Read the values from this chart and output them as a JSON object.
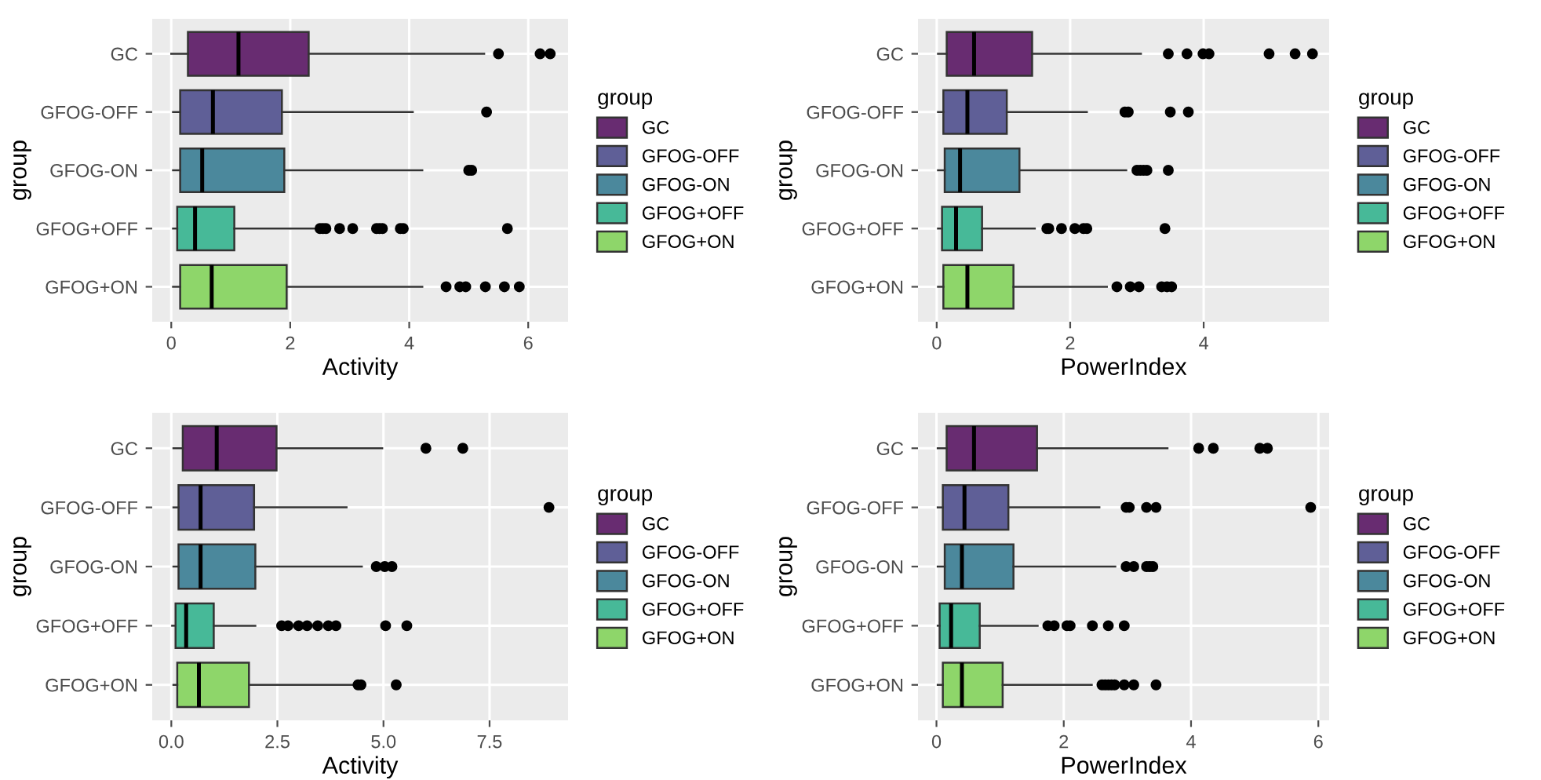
{
  "chart_data": [
    {
      "type": "box",
      "orientation": "horizontal",
      "xlabel": "Activity",
      "ylabel": "group",
      "legend_title": "group",
      "legend": "right",
      "grid": true,
      "categories": [
        "GC",
        "GFOG-OFF",
        "GFOG-ON",
        "GFOG+OFF",
        "GFOG+ON"
      ],
      "xlim": [
        -0.32,
        6.67
      ],
      "xticks": [
        0,
        2,
        4,
        6
      ],
      "series": [
        {
          "name": "GC",
          "color": "#682c71",
          "boxes": [
            {
              "low": 0.0,
              "q1": 0.28,
              "median": 1.13,
              "q3": 2.31,
              "high": 5.26,
              "outliers": [
                5.5,
                6.2,
                6.37
              ]
            },
            null,
            null,
            null,
            null
          ]
        },
        {
          "name": "GFOG-OFF",
          "color": "#5f5f97",
          "boxes": [
            null,
            {
              "low": 0.03,
              "q1": 0.15,
              "median": 0.7,
              "q3": 1.86,
              "high": 4.06,
              "outliers": [
                5.3
              ]
            },
            null,
            null,
            null
          ]
        },
        {
          "name": "GFOG-ON",
          "color": "#4b889c",
          "boxes": [
            null,
            null,
            {
              "low": 0.03,
              "q1": 0.15,
              "median": 0.52,
              "q3": 1.9,
              "high": 4.22,
              "outliers": [
                5.0,
                5.05
              ]
            },
            null,
            null
          ]
        },
        {
          "name": "GFOG+OFF",
          "color": "#47b998",
          "boxes": [
            null,
            null,
            null,
            {
              "low": 0.03,
              "q1": 0.1,
              "median": 0.4,
              "q3": 1.06,
              "high": 2.4,
              "outliers": [
                2.5,
                2.55,
                2.6,
                2.83,
                3.05,
                3.45,
                3.5,
                3.55,
                3.85,
                3.9,
                5.65
              ]
            },
            null
          ]
        },
        {
          "name": "GFOG+ON",
          "color": "#8ed66a",
          "boxes": [
            null,
            null,
            null,
            null,
            {
              "low": 0.03,
              "q1": 0.15,
              "median": 0.68,
              "q3": 1.94,
              "high": 4.22,
              "outliers": [
                4.62,
                4.85,
                4.95,
                5.28,
                5.6,
                5.85
              ]
            }
          ]
        }
      ]
    },
    {
      "type": "box",
      "orientation": "horizontal",
      "xlabel": "PowerIndex",
      "ylabel": "group",
      "legend_title": "group",
      "legend": "right",
      "grid": true,
      "categories": [
        "GC",
        "GFOG-OFF",
        "GFOG-ON",
        "GFOG+OFF",
        "GFOG+ON"
      ],
      "xlim": [
        -0.28,
        5.88
      ],
      "xticks": [
        0,
        2,
        4
      ],
      "series": [
        {
          "name": "GC",
          "color": "#682c71",
          "boxes": [
            {
              "low": 0.02,
              "q1": 0.15,
              "median": 0.56,
              "q3": 1.43,
              "high": 3.06,
              "outliers": [
                3.47,
                3.75,
                3.99,
                4.08,
                4.98,
                5.37,
                5.63
              ]
            },
            null,
            null,
            null,
            null
          ]
        },
        {
          "name": "GFOG-OFF",
          "color": "#5f5f97",
          "boxes": [
            null,
            {
              "low": 0.02,
              "q1": 0.1,
              "median": 0.46,
              "q3": 1.05,
              "high": 2.25,
              "outliers": [
                2.82,
                2.87,
                3.5,
                3.77
              ]
            },
            null,
            null,
            null
          ]
        },
        {
          "name": "GFOG-ON",
          "color": "#4b889c",
          "boxes": [
            null,
            null,
            {
              "low": 0.02,
              "q1": 0.12,
              "median": 0.35,
              "q3": 1.24,
              "high": 2.84,
              "outliers": [
                3.0,
                3.05,
                3.1,
                3.15,
                3.47
              ]
            },
            null,
            null
          ]
        },
        {
          "name": "GFOG+OFF",
          "color": "#47b998",
          "boxes": [
            null,
            null,
            null,
            {
              "low": 0.02,
              "q1": 0.08,
              "median": 0.29,
              "q3": 0.68,
              "high": 1.47,
              "outliers": [
                1.65,
                1.68,
                1.87,
                2.07,
                2.2,
                2.25,
                3.42
              ]
            },
            null
          ]
        },
        {
          "name": "GFOG+ON",
          "color": "#8ed66a",
          "boxes": [
            null,
            null,
            null,
            null,
            {
              "low": 0.02,
              "q1": 0.1,
              "median": 0.46,
              "q3": 1.15,
              "high": 2.55,
              "outliers": [
                2.7,
                2.9,
                3.03,
                3.37,
                3.45,
                3.52
              ]
            }
          ]
        }
      ]
    },
    {
      "type": "box",
      "orientation": "horizontal",
      "xlabel": "Activity",
      "ylabel": "group",
      "legend_title": "group",
      "legend": "right",
      "grid": true,
      "categories": [
        "GC",
        "GFOG-OFF",
        "GFOG-ON",
        "GFOG+OFF",
        "GFOG+ON"
      ],
      "xlim": [
        -0.45,
        9.35
      ],
      "xticks": [
        {
          "value": 0,
          "label": "0.0"
        },
        2.5,
        {
          "value": 5,
          "label": "5.0"
        },
        7.5
      ],
      "series": [
        {
          "name": "GC",
          "color": "#682c71",
          "boxes": [
            {
              "low": 0.05,
              "q1": 0.27,
              "median": 1.07,
              "q3": 2.48,
              "high": 4.97,
              "outliers": [
                6.0,
                6.87
              ]
            },
            null,
            null,
            null,
            null
          ]
        },
        {
          "name": "GFOG-OFF",
          "color": "#5f5f97",
          "boxes": [
            null,
            {
              "low": 0.05,
              "q1": 0.17,
              "median": 0.69,
              "q3": 1.95,
              "high": 4.13,
              "outliers": [
                8.9
              ]
            },
            null,
            null,
            null
          ]
        },
        {
          "name": "GFOG-ON",
          "color": "#4b889c",
          "boxes": [
            null,
            null,
            {
              "low": 0.05,
              "q1": 0.17,
              "median": 0.69,
              "q3": 1.98,
              "high": 4.49,
              "outliers": [
                4.83,
                5.03,
                5.2
              ]
            },
            null,
            null
          ]
        },
        {
          "name": "GFOG+OFF",
          "color": "#47b998",
          "boxes": [
            null,
            null,
            null,
            {
              "low": 0.02,
              "q1": 0.1,
              "median": 0.35,
              "q3": 1.0,
              "high": 1.98,
              "outliers": [
                2.6,
                2.75,
                3.0,
                3.2,
                3.45,
                3.7,
                3.88,
                5.05,
                5.55
              ]
            },
            null
          ]
        },
        {
          "name": "GFOG+ON",
          "color": "#8ed66a",
          "boxes": [
            null,
            null,
            null,
            null,
            {
              "low": 0.05,
              "q1": 0.14,
              "median": 0.65,
              "q3": 1.83,
              "high": 4.37,
              "outliers": [
                4.4,
                4.47,
                5.3
              ]
            }
          ]
        }
      ]
    },
    {
      "type": "box",
      "orientation": "horizontal",
      "xlabel": "PowerIndex",
      "ylabel": "group",
      "legend_title": "group",
      "legend": "right",
      "grid": true,
      "categories": [
        "GC",
        "GFOG-OFF",
        "GFOG-ON",
        "GFOG+OFF",
        "GFOG+ON"
      ],
      "xlim": [
        -0.29,
        6.17
      ],
      "xticks": [
        0,
        2,
        4,
        6
      ],
      "series": [
        {
          "name": "GC",
          "color": "#682c71",
          "boxes": [
            {
              "low": 0.02,
              "q1": 0.16,
              "median": 0.59,
              "q3": 1.58,
              "high": 3.63,
              "outliers": [
                4.12,
                4.35,
                5.08,
                5.2
              ]
            },
            null,
            null,
            null,
            null
          ]
        },
        {
          "name": "GFOG-OFF",
          "color": "#5f5f97",
          "boxes": [
            null,
            {
              "low": 0.02,
              "q1": 0.1,
              "median": 0.44,
              "q3": 1.13,
              "high": 2.56,
              "outliers": [
                2.98,
                3.03,
                3.3,
                3.45,
                5.88
              ]
            },
            null,
            null,
            null
          ]
        },
        {
          "name": "GFOG-ON",
          "color": "#4b889c",
          "boxes": [
            null,
            null,
            {
              "low": 0.02,
              "q1": 0.13,
              "median": 0.4,
              "q3": 1.21,
              "high": 2.81,
              "outliers": [
                2.98,
                3.1,
                3.3,
                3.35,
                3.4
              ]
            },
            null,
            null
          ]
        },
        {
          "name": "GFOG+OFF",
          "color": "#47b998",
          "boxes": [
            null,
            null,
            null,
            {
              "low": 0.02,
              "q1": 0.05,
              "median": 0.23,
              "q3": 0.68,
              "high": 1.59,
              "outliers": [
                1.75,
                1.85,
                2.05,
                2.1,
                2.45,
                2.7,
                2.95
              ]
            },
            null
          ]
        },
        {
          "name": "GFOG+ON",
          "color": "#8ed66a",
          "boxes": [
            null,
            null,
            null,
            null,
            {
              "low": 0.02,
              "q1": 0.1,
              "median": 0.4,
              "q3": 1.04,
              "high": 2.44,
              "outliers": [
                2.6,
                2.65,
                2.7,
                2.75,
                2.8,
                2.95,
                3.1,
                3.45
              ]
            }
          ]
        }
      ]
    }
  ]
}
